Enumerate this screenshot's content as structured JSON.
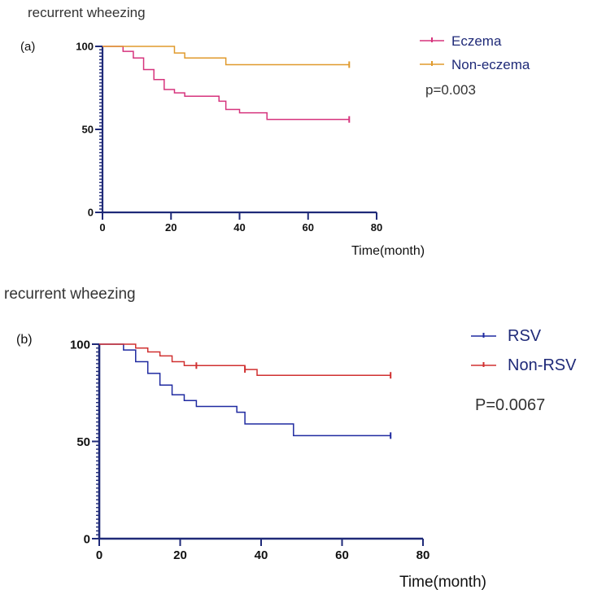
{
  "colors": {
    "eczema": "#d6347d",
    "non_eczema": "#e09a2c",
    "rsv": "#1f2aa0",
    "non_rsv": "#d03030",
    "axis": "#1f2a78",
    "legend_text": "#1f2a78"
  },
  "chart_data": [
    {
      "type": "line",
      "panel_label": "(a)",
      "title": "recurrent wheezing",
      "xlabel": "Time(month)",
      "ylabel": "",
      "xlim": [
        0,
        80
      ],
      "ylim": [
        0,
        100
      ],
      "x_ticks": [
        "0",
        "20",
        "40",
        "60",
        "80"
      ],
      "y_ticks": [
        "0",
        "50",
        "100"
      ],
      "p_value": "p=0.003",
      "series": [
        {
          "name": "Eczema",
          "color_key": "eczema",
          "x": [
            0,
            6,
            9,
            12,
            15,
            18,
            21,
            24,
            30,
            34,
            36,
            40,
            48,
            72
          ],
          "y": [
            100,
            97,
            93,
            86,
            80,
            74,
            72,
            70,
            70,
            67,
            62,
            60,
            56,
            56
          ],
          "censor": [
            {
              "x": 72,
              "y": 56
            }
          ]
        },
        {
          "name": "Non-eczema",
          "color_key": "non_eczema",
          "x": [
            0,
            21,
            24,
            36,
            72
          ],
          "y": [
            100,
            96,
            93,
            89,
            89
          ],
          "censor": [
            {
              "x": 72,
              "y": 89
            }
          ]
        }
      ]
    },
    {
      "type": "line",
      "panel_label": "(b)",
      "title": "recurrent wheezing",
      "xlabel": "Time(month)",
      "ylabel": "",
      "xlim": [
        0,
        80
      ],
      "ylim": [
        0,
        100
      ],
      "x_ticks": [
        "0",
        "20",
        "40",
        "60",
        "80"
      ],
      "y_ticks": [
        "0",
        "50",
        "100"
      ],
      "p_value": "P=0.0067",
      "series": [
        {
          "name": "RSV",
          "color_key": "rsv",
          "x": [
            0,
            6,
            9,
            12,
            15,
            18,
            21,
            24,
            30,
            34,
            36,
            48,
            72
          ],
          "y": [
            100,
            97,
            91,
            85,
            79,
            74,
            71,
            68,
            68,
            65,
            59,
            53,
            53
          ],
          "censor": [
            {
              "x": 72,
              "y": 53
            }
          ]
        },
        {
          "name": "Non-RSV",
          "color_key": "non_rsv",
          "x": [
            0,
            9,
            12,
            15,
            18,
            21,
            36,
            39,
            72
          ],
          "y": [
            100,
            98,
            96,
            94,
            91,
            89,
            87,
            84,
            84
          ],
          "censor": [
            {
              "x": 24,
              "y": 89
            },
            {
              "x": 36,
              "y": 87
            },
            {
              "x": 72,
              "y": 84
            }
          ]
        }
      ]
    }
  ]
}
